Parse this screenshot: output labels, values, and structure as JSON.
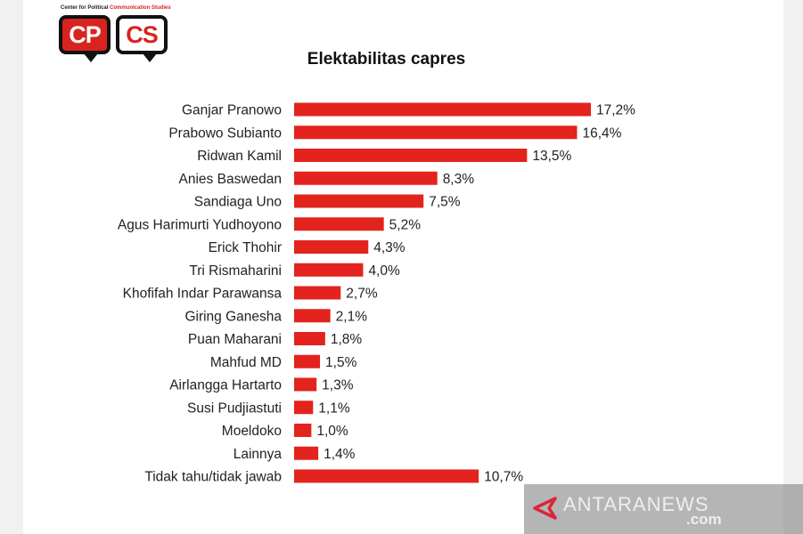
{
  "logo": {
    "caption_black": "Center for Political",
    "caption_red": "Communication Studies",
    "left": "CP",
    "right": "CS"
  },
  "watermark": {
    "text": "ANTARANEWS",
    "sub": ".com"
  },
  "colors": {
    "bar": "#e3231d",
    "text": "#222222"
  },
  "chart_data": {
    "type": "bar",
    "orientation": "horizontal",
    "title": "Elektabilitas capres",
    "categories": [
      "Ganjar Pranowo",
      "Prabowo Subianto",
      "Ridwan Kamil",
      "Anies Baswedan",
      "Sandiaga Uno",
      "Agus Harimurti Yudhoyono",
      "Erick Thohir",
      "Tri Rismaharini",
      "Khofifah Indar Parawansa",
      "Giring Ganesha",
      "Puan Maharani",
      "Mahfud MD",
      "Airlangga Hartarto",
      "Susi Pudjiastuti",
      "Moeldoko",
      "Lainnya",
      "Tidak tahu/tidak jawab"
    ],
    "values": [
      17.2,
      16.4,
      13.5,
      8.3,
      7.5,
      5.2,
      4.3,
      4.0,
      2.7,
      2.1,
      1.8,
      1.5,
      1.3,
      1.1,
      1.0,
      1.4,
      10.7
    ],
    "value_labels": [
      "17,2%",
      "16,4%",
      "13,5%",
      "8,3%",
      "7,5%",
      "5,2%",
      "4,3%",
      "4,0%",
      "2,7%",
      "2,1%",
      "1,8%",
      "1,5%",
      "1,3%",
      "1,1%",
      "1,0%",
      "1,4%",
      "10,7%"
    ],
    "unit": "%",
    "grid": false,
    "legend": "none"
  }
}
